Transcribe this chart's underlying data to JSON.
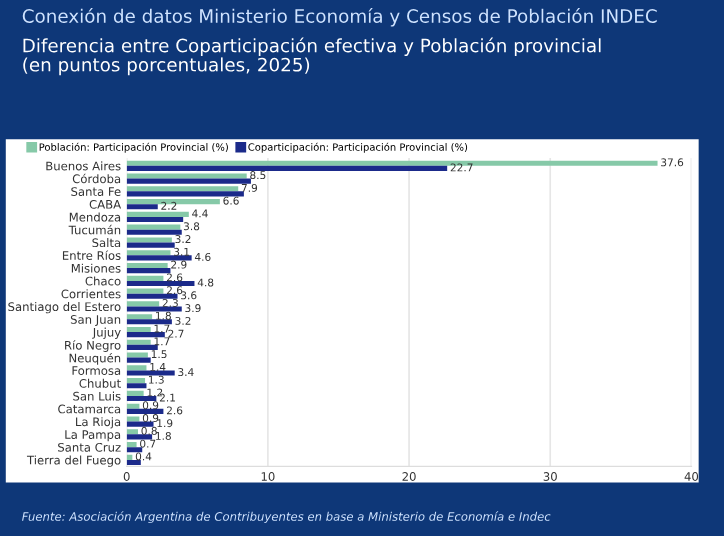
{
  "chart_data": {
    "type": "bar",
    "orientation": "horizontal",
    "title": "Conexión de datos Ministerio Economía y Censos de Población INDEC",
    "subtitle": "Diferencia entre Coparticipación efectiva y Población provincial\n(en puntos porcentuales, 2025)",
    "categories": [
      "Buenos Aires",
      "Córdoba",
      "Santa Fe",
      "CABA",
      "Mendoza",
      "Tucumán",
      "Salta",
      "Entre Ríos",
      "Misiones",
      "Chaco",
      "Corrientes",
      "Santiago del Estero",
      "San Juan",
      "Jujuy",
      "Río Negro",
      "Neuquén",
      "Formosa",
      "Chubut",
      "San Luis",
      "Catamarca",
      "La Rioja",
      "La Pampa",
      "Santa Cruz",
      "Tierra del Fuego"
    ],
    "series": [
      {
        "name": "Población: Participación Provincial (%)",
        "color": "#86c9a8",
        "values": [
          37.6,
          8.5,
          7.9,
          6.6,
          4.4,
          3.8,
          3.2,
          3.1,
          2.9,
          2.6,
          2.6,
          2.3,
          1.8,
          1.7,
          1.7,
          1.5,
          1.4,
          1.3,
          1.2,
          0.9,
          0.9,
          0.8,
          0.7,
          0.4
        ],
        "value_labels": [
          "37.6",
          "8.5",
          "7.9",
          "6.6",
          "4.4",
          "3.8",
          "3.2",
          "3.1",
          "2.9",
          "2.6",
          "2.6",
          "2.3",
          "1.8",
          "1.7",
          "1.7",
          "1.5",
          "1.4",
          "1.3",
          "1.2",
          "0.9",
          "0.9",
          "0.8",
          "0.7",
          "0.4"
        ]
      },
      {
        "name": "Coparticipación: Participación Provincial (%)",
        "color": "#1b2a8a",
        "values": [
          22.7,
          8.8,
          8.3,
          2.2,
          4.0,
          3.9,
          3.4,
          4.6,
          3.1,
          4.8,
          3.6,
          3.9,
          3.2,
          2.7,
          2.2,
          1.7,
          3.4,
          1.4,
          2.1,
          2.6,
          1.9,
          1.8,
          1.1,
          1.0
        ],
        "value_labels": [
          "22.7",
          null,
          null,
          "2.2",
          null,
          null,
          null,
          "4.6",
          null,
          "4.8",
          "3.6",
          "3.9",
          "3.2",
          "2.7",
          null,
          null,
          "3.4",
          null,
          "2.1",
          "2.6",
          "1.9",
          "1.8",
          null,
          null
        ]
      }
    ],
    "xlim": [
      0,
      40
    ],
    "xticks": [
      0,
      10,
      20,
      30,
      40
    ],
    "grid": "x",
    "legend": "top left",
    "annotations": [
      "Fuente: Asociación Argentina de Contribuyentes en base a Ministerio de Economía e Indec"
    ]
  }
}
